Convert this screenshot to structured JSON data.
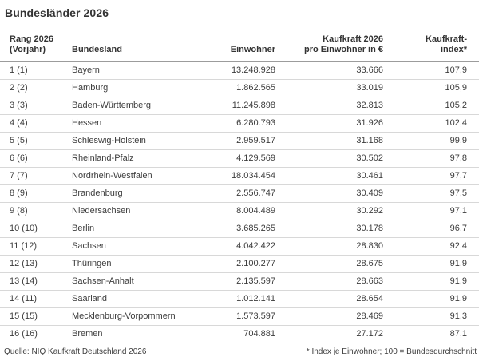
{
  "title": "Bundesländer 2026",
  "chart_data": {
    "type": "table",
    "title": "Bundesländer 2026",
    "header": {
      "rank": "Rang 2026\n(Vorjahr)",
      "state": "Bundesland",
      "population": "Einwohner",
      "power": "Kaufkraft 2026\npro Einwohner in €",
      "index": "Kaufkraft-\nindex*"
    },
    "rows": [
      {
        "rank": "1 (1)",
        "state": "Bayern",
        "population": "13.248.928",
        "power": "33.666",
        "index": "107,9"
      },
      {
        "rank": "2 (2)",
        "state": "Hamburg",
        "population": "1.862.565",
        "power": "33.019",
        "index": "105,9"
      },
      {
        "rank": "3 (3)",
        "state": "Baden-Württemberg",
        "population": "11.245.898",
        "power": "32.813",
        "index": "105,2"
      },
      {
        "rank": "4 (4)",
        "state": "Hessen",
        "population": "6.280.793",
        "power": "31.926",
        "index": "102,4"
      },
      {
        "rank": "5 (5)",
        "state": "Schleswig-Holstein",
        "population": "2.959.517",
        "power": "31.168",
        "index": "99,9"
      },
      {
        "rank": "6 (6)",
        "state": "Rheinland-Pfalz",
        "population": "4.129.569",
        "power": "30.502",
        "index": "97,8"
      },
      {
        "rank": "7 (7)",
        "state": "Nordrhein-Westfalen",
        "population": "18.034.454",
        "power": "30.461",
        "index": "97,7"
      },
      {
        "rank": "8 (9)",
        "state": "Brandenburg",
        "population": "2.556.747",
        "power": "30.409",
        "index": "97,5"
      },
      {
        "rank": "9 (8)",
        "state": "Niedersachsen",
        "population": "8.004.489",
        "power": "30.292",
        "index": "97,1"
      },
      {
        "rank": "10 (10)",
        "state": "Berlin",
        "population": "3.685.265",
        "power": "30.178",
        "index": "96,7"
      },
      {
        "rank": "11 (12)",
        "state": "Sachsen",
        "population": "4.042.422",
        "power": "28.830",
        "index": "92,4"
      },
      {
        "rank": "12 (13)",
        "state": "Thüringen",
        "population": "2.100.277",
        "power": "28.675",
        "index": "91,9"
      },
      {
        "rank": "13 (14)",
        "state": "Sachsen-Anhalt",
        "population": "2.135.597",
        "power": "28.663",
        "index": "91,9"
      },
      {
        "rank": "14 (11)",
        "state": "Saarland",
        "population": "1.012.141",
        "power": "28.654",
        "index": "91,9"
      },
      {
        "rank": "15 (15)",
        "state": "Mecklenburg-Vorpommern",
        "population": "1.573.597",
        "power": "28.469",
        "index": "91,3"
      },
      {
        "rank": "16 (16)",
        "state": "Bremen",
        "population": "704.881",
        "power": "27.172",
        "index": "87,1"
      }
    ],
    "footer": {
      "source": "Quelle: NIQ Kaufkraft Deutschland 2026",
      "footnote": "* Index je Einwohner; 100 = Bundesdurchschnitt"
    },
    "layout_hints": {
      "grid": "horizontal row separators only",
      "alignment": "rank/state left, numeric columns right"
    }
  },
  "colors": {
    "text": "#3c3c3c",
    "title_text": "#333333",
    "header_rule": "#9c9c9c",
    "row_rule": "#d8d8d8",
    "background": "#ffffff"
  }
}
